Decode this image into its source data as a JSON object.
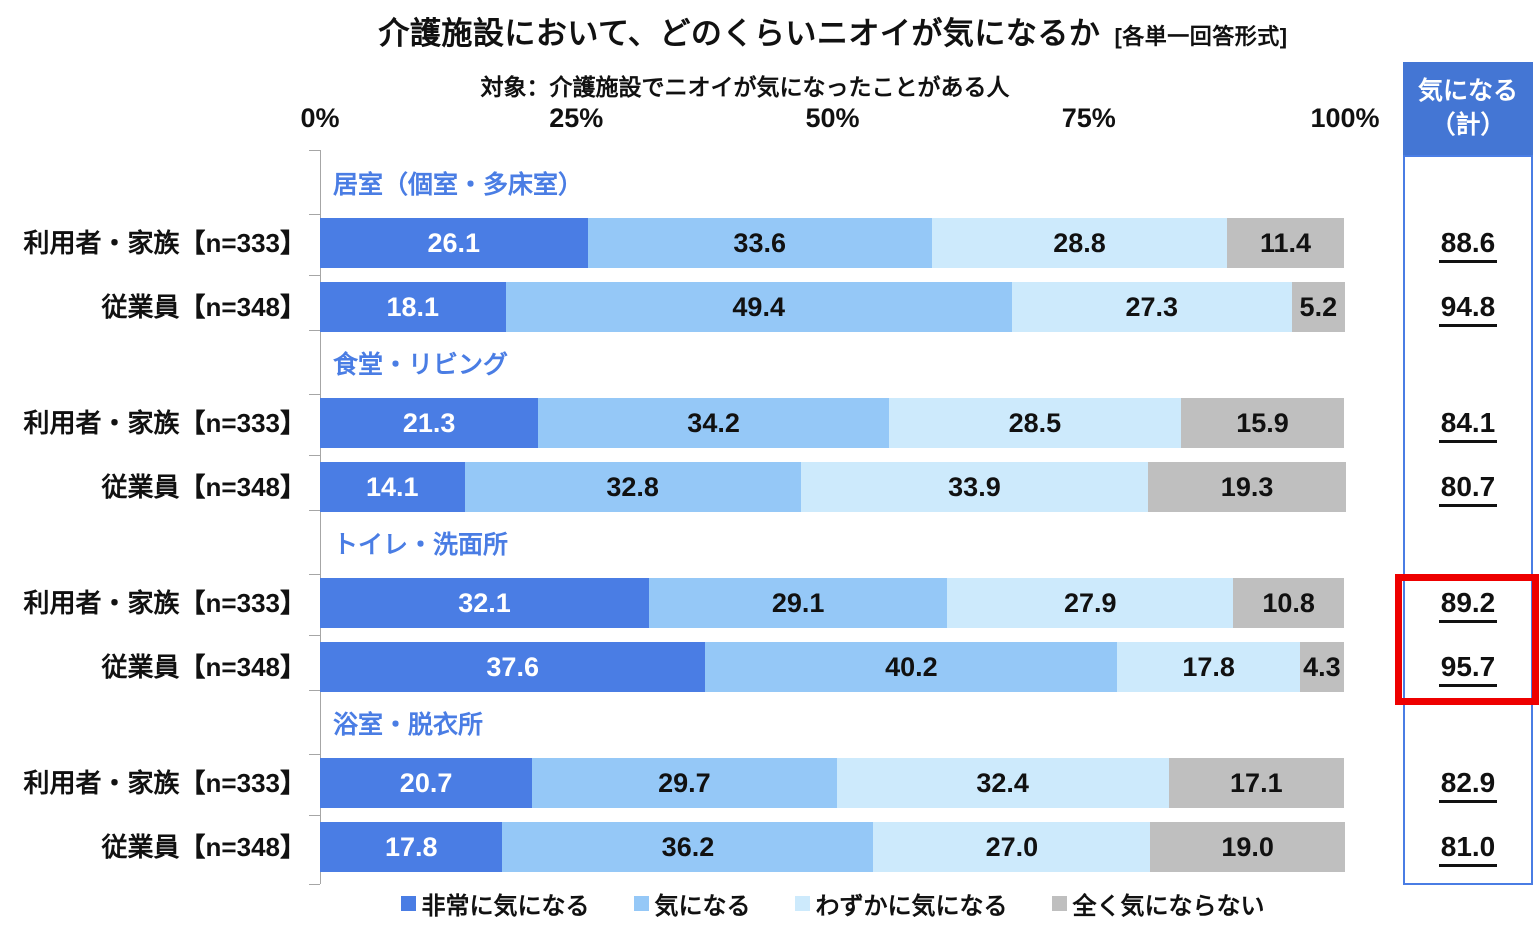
{
  "title": {
    "main": "介護施設において、どのくらいニオイが気になるか",
    "note": "[各単一回答形式]"
  },
  "subtitle": "対象：介護施設でニオイが気になったことがある人",
  "summary_header": {
    "line1": "気になる",
    "line2": "（計）"
  },
  "colors": {
    "segment_colors": [
      "#4a7de4",
      "#95c8f7",
      "#cdeafc",
      "#bfbfbf"
    ],
    "segment_text_colors": [
      "#ffffff",
      "#111111",
      "#111111",
      "#111111"
    ],
    "header_bg": "#4476d4",
    "panel_border": "#4a7de4",
    "group_label": "#4a7de4",
    "highlight_border": "#ee0000",
    "axis": "#a6a6a6"
  },
  "chart_data": {
    "type": "bar",
    "orientation": "horizontal",
    "stacked": true,
    "title": "介護施設において、どのくらいニオイが気になるか",
    "subtitle": "対象：介護施設でニオイが気になったことがある人",
    "format_note": "[各単一回答形式]",
    "xlim": [
      0,
      100
    ],
    "x_ticks": [
      "0%",
      "25%",
      "50%",
      "75%",
      "100%"
    ],
    "x_tick_values": [
      0,
      25,
      50,
      75,
      100
    ],
    "grid": false,
    "legend_position": "bottom",
    "segments": [
      "非常に気になる",
      "気になる",
      "わずかに気になる",
      "全く気にならない"
    ],
    "summary_column_header": "気になる（計）",
    "groups": [
      {
        "name": "居室（個室・多床室）",
        "highlighted": false,
        "rows": [
          {
            "label": "利用者・家族【n=333】",
            "values": [
              26.1,
              33.6,
              28.8,
              11.4
            ],
            "total": 88.6
          },
          {
            "label": "従業員【n=348】",
            "values": [
              18.1,
              49.4,
              27.3,
              5.2
            ],
            "total": 94.8
          }
        ]
      },
      {
        "name": "食堂・リビング",
        "highlighted": false,
        "rows": [
          {
            "label": "利用者・家族【n=333】",
            "values": [
              21.3,
              34.2,
              28.5,
              15.9
            ],
            "total": 84.1
          },
          {
            "label": "従業員【n=348】",
            "values": [
              14.1,
              32.8,
              33.9,
              19.3
            ],
            "total": 80.7
          }
        ]
      },
      {
        "name": "トイレ・洗面所",
        "highlighted": true,
        "rows": [
          {
            "label": "利用者・家族【n=333】",
            "values": [
              32.1,
              29.1,
              27.9,
              10.8
            ],
            "total": 89.2
          },
          {
            "label": "従業員【n=348】",
            "values": [
              37.6,
              40.2,
              17.8,
              4.3
            ],
            "total": 95.7
          }
        ]
      },
      {
        "name": "浴室・脱衣所",
        "highlighted": false,
        "rows": [
          {
            "label": "利用者・家族【n=333】",
            "values": [
              20.7,
              29.7,
              32.4,
              17.1
            ],
            "total": 82.9
          },
          {
            "label": "従業員【n=348】",
            "values": [
              17.8,
              36.2,
              27.0,
              19.0
            ],
            "total": 81.0
          }
        ]
      }
    ]
  }
}
